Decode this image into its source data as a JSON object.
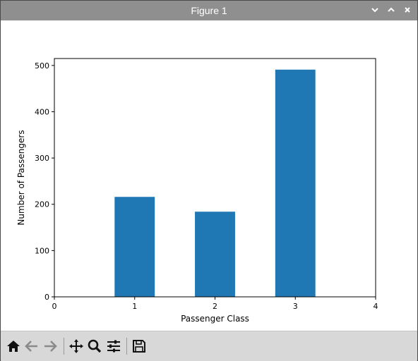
{
  "window": {
    "title": "Figure 1"
  },
  "title_controls": [
    "minimize-icon",
    "maximize-icon",
    "close-icon"
  ],
  "toolbar": {
    "buttons": [
      {
        "name": "home-icon",
        "action": "Home"
      },
      {
        "name": "back-arrow-icon",
        "action": "Back"
      },
      {
        "name": "forward-arrow-icon",
        "action": "Forward"
      },
      {
        "name": "pan-icon",
        "action": "Pan"
      },
      {
        "name": "zoom-icon",
        "action": "Zoom"
      },
      {
        "name": "configure-subplots-icon",
        "action": "Subplots"
      },
      {
        "name": "save-icon",
        "action": "Save"
      }
    ]
  },
  "colors": {
    "bar": "#1f77b4",
    "titlebar": "#8f8f8f",
    "toolbar": "#d8d8d8"
  },
  "chart_data": {
    "type": "bar",
    "categories": [
      1,
      2,
      3
    ],
    "values": [
      216,
      184,
      491
    ],
    "xlabel": "Passenger Class",
    "ylabel": "Number of Passengers",
    "xlim": [
      0,
      4
    ],
    "ylim": [
      0,
      515
    ],
    "xticks": [
      "0",
      "1",
      "2",
      "3",
      "4"
    ],
    "yticks": [
      "0",
      "100",
      "200",
      "300",
      "400",
      "500"
    ],
    "grid": false
  }
}
